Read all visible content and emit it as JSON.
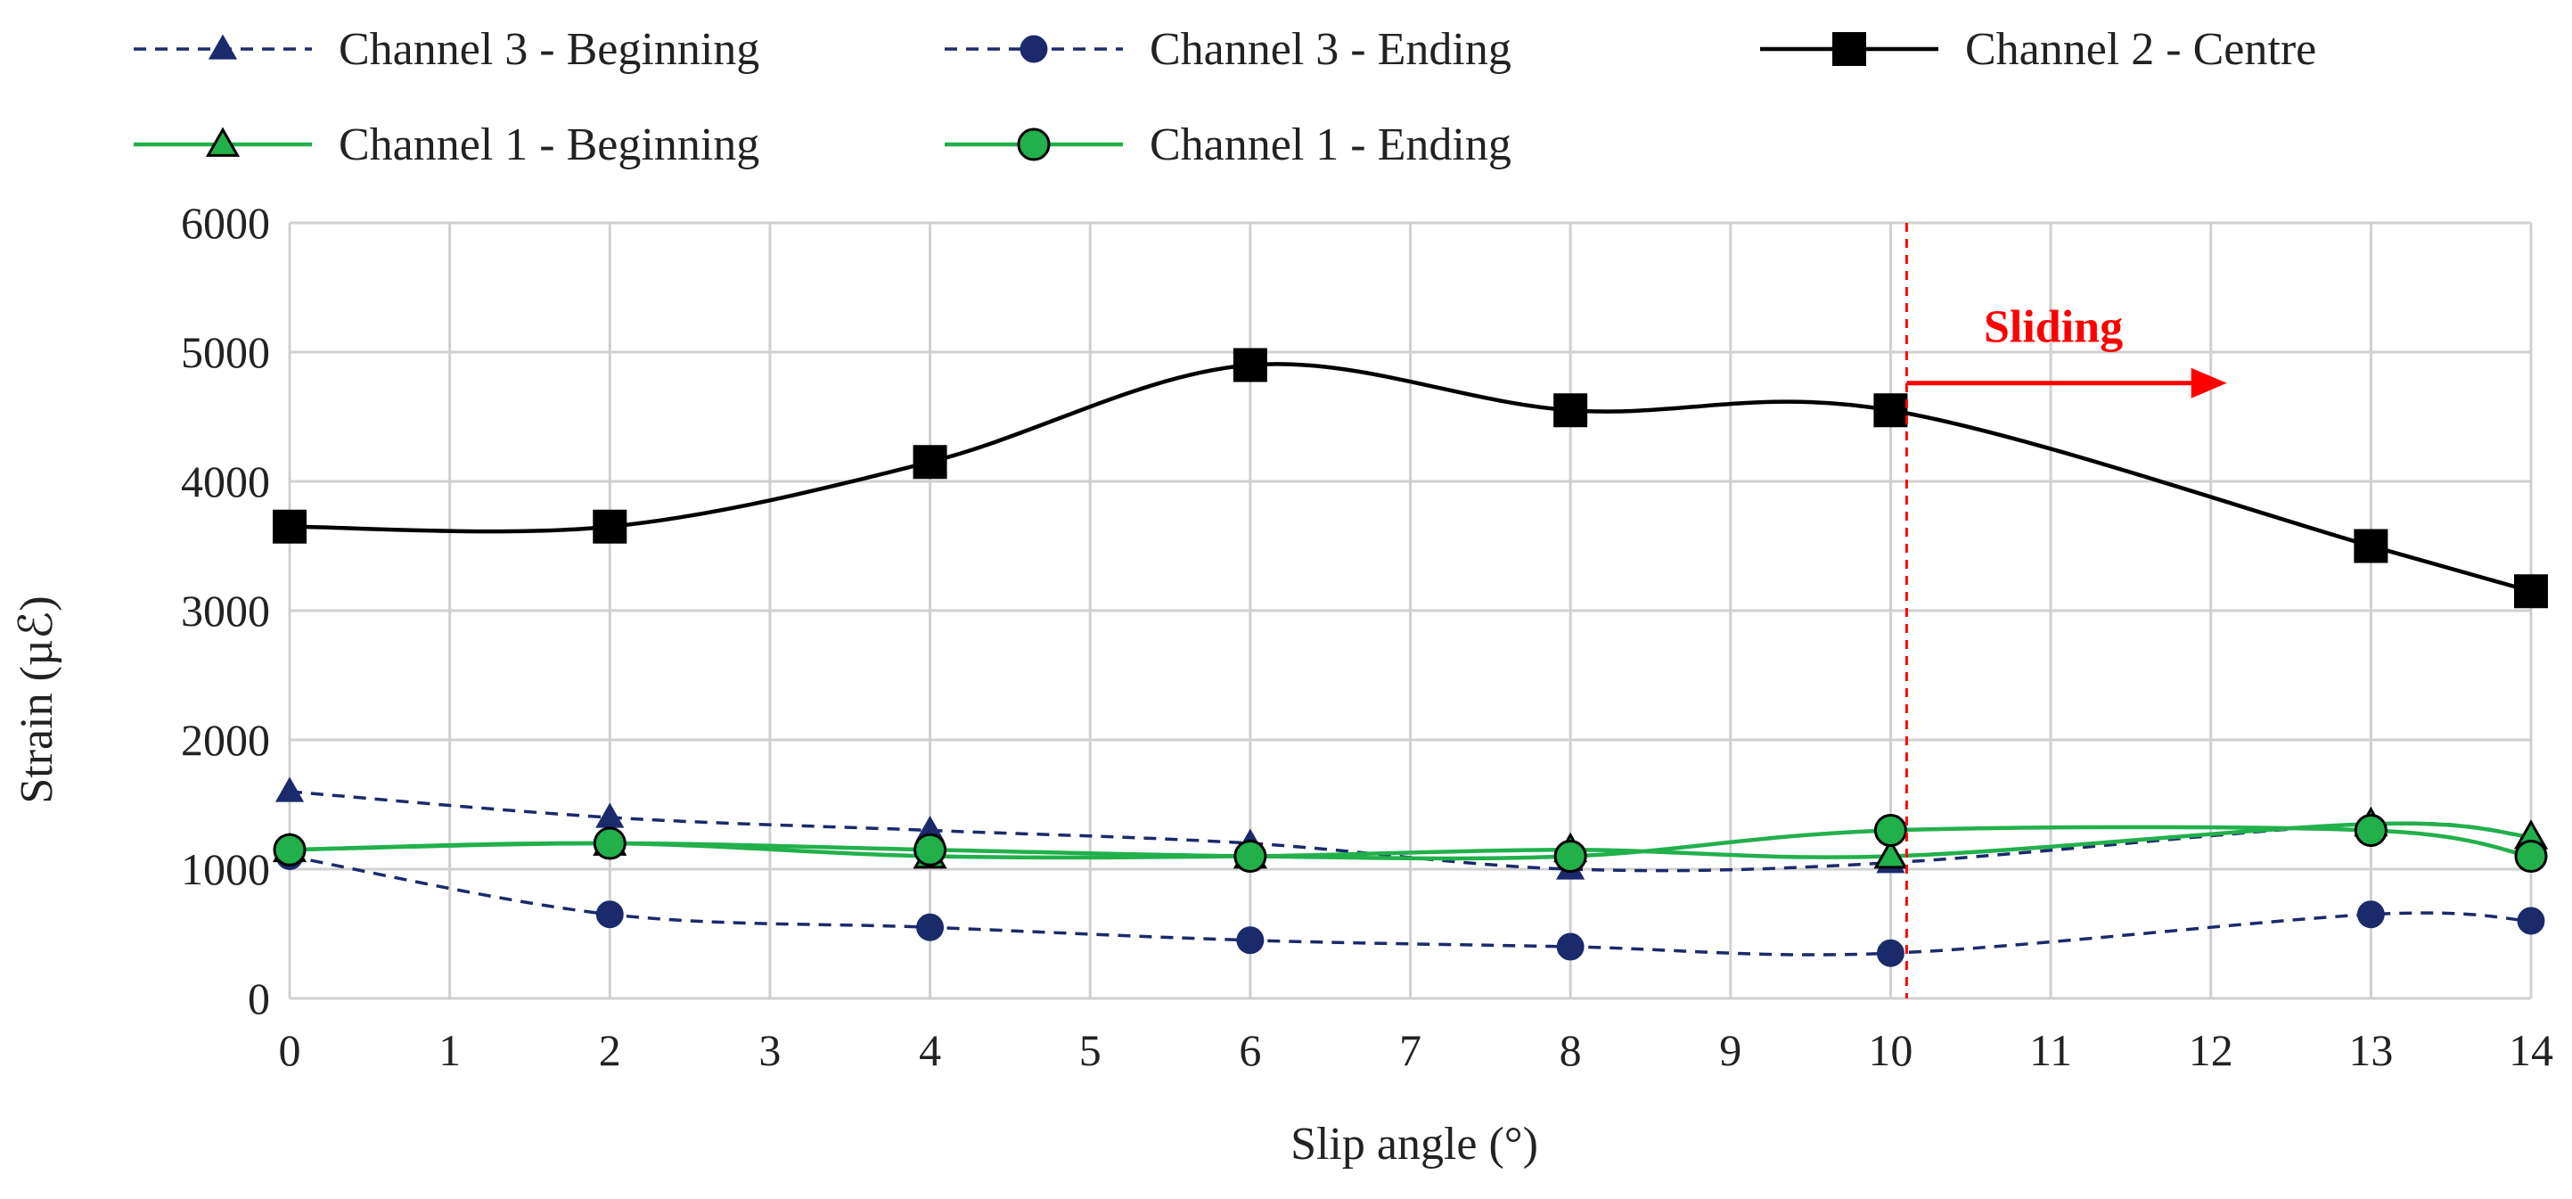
{
  "chart_data": {
    "type": "line",
    "title": "",
    "xlabel": "Slip angle (°)",
    "ylabel": "Strain (µℰ)",
    "xlim": [
      0,
      14
    ],
    "ylim": [
      0,
      6000
    ],
    "x_ticks": [
      "0",
      "1",
      "2",
      "3",
      "4",
      "5",
      "6",
      "7",
      "8",
      "9",
      "10",
      "11",
      "12",
      "13",
      "14"
    ],
    "y_ticks": [
      "0",
      "1000",
      "2000",
      "3000",
      "4000",
      "5000",
      "6000"
    ],
    "grid": true,
    "legend_position": "top",
    "series": [
      {
        "name": "Channel 3 - Beginning",
        "color": "#1b2a6b",
        "line": "dashed",
        "marker": "triangle",
        "marker_fill": "#1b2a6b",
        "x": [
          0,
          2,
          4,
          6,
          8,
          10,
          13,
          14
        ],
        "values": [
          1600,
          1400,
          1300,
          1200,
          1000,
          1050,
          1350,
          1250
        ]
      },
      {
        "name": "Channel 3 - Ending",
        "color": "#1b2a6b",
        "line": "dashed",
        "marker": "circle",
        "marker_fill": "#1b2a6b",
        "x": [
          0,
          2,
          4,
          6,
          8,
          10,
          13,
          14
        ],
        "values": [
          1100,
          650,
          550,
          450,
          400,
          350,
          650,
          600
        ]
      },
      {
        "name": "Channel 2 - Centre",
        "color": "#000000",
        "line": "solid",
        "marker": "square",
        "marker_fill": "#000000",
        "x": [
          0,
          2,
          4,
          6,
          8,
          10,
          13,
          14
        ],
        "values": [
          3650,
          3650,
          4150,
          4900,
          4550,
          4550,
          3500,
          3150
        ]
      },
      {
        "name": "Channel 1 - Beginning",
        "color": "#22b04b",
        "line": "solid",
        "marker": "triangle",
        "marker_fill": "#22b04b",
        "x": [
          0,
          2,
          4,
          6,
          8,
          10,
          13,
          14
        ],
        "values": [
          1150,
          1200,
          1100,
          1100,
          1150,
          1100,
          1350,
          1250
        ]
      },
      {
        "name": "Channel 1 - Ending",
        "color": "#22b04b",
        "line": "solid",
        "marker": "circle",
        "marker_fill": "#22b04b",
        "x": [
          0,
          2,
          4,
          6,
          8,
          10,
          13,
          14
        ],
        "values": [
          1150,
          1200,
          1150,
          1100,
          1100,
          1300,
          1300,
          1100
        ]
      }
    ],
    "annotations": [
      {
        "text": "Sliding",
        "color": "#ff0000",
        "x": 10.1,
        "y_text": 5150,
        "arrow_from_x": 10.1,
        "arrow_to_x": 12.1,
        "arrow_y": 4760,
        "vline_x": 10.1,
        "vline_style": "dashed"
      }
    ]
  }
}
